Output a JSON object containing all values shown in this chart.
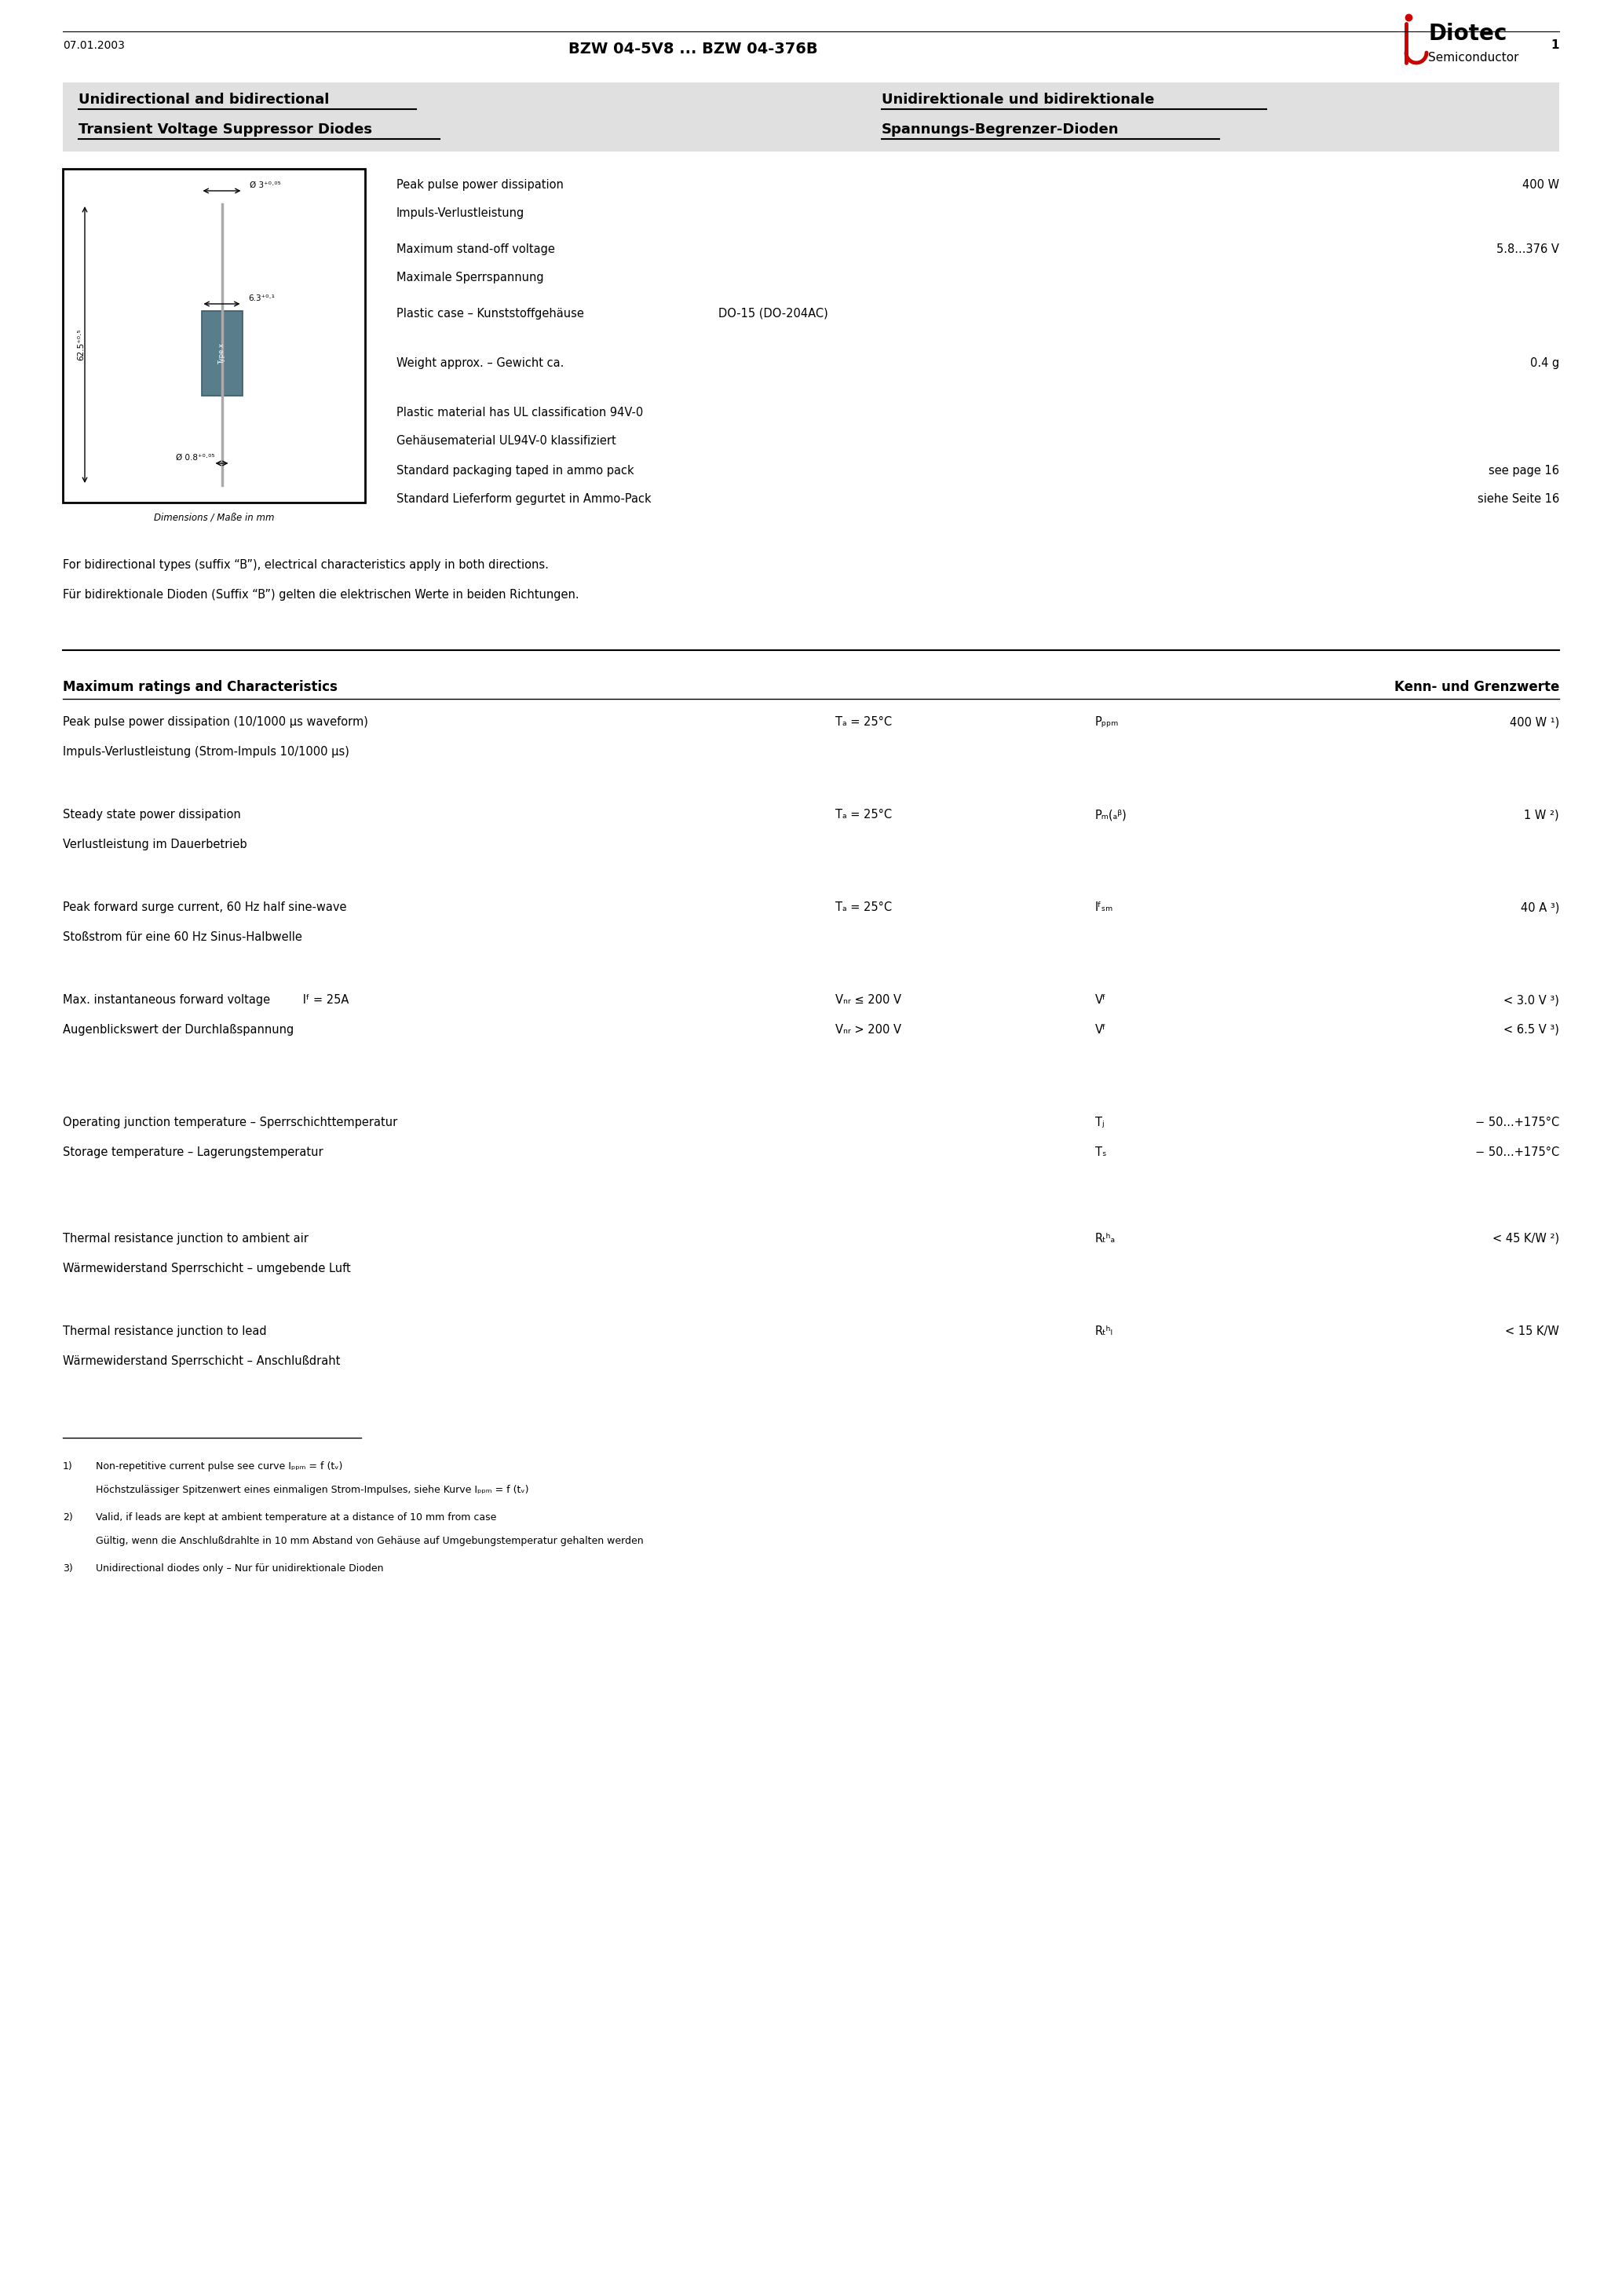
{
  "page_width": 20.66,
  "page_height": 29.24,
  "bg_color": "#ffffff",
  "header_title": "BZW 04-5V8 ... BZW 04-376B",
  "company_name": "Diotec",
  "company_sub": "Semiconductor",
  "logo_color_red": "#cc0000",
  "subtitle_bg": "#e0e0e0",
  "subtitle_left1": "Unidirectional and bidirectional",
  "subtitle_left2": "Transient Voltage Suppressor Diodes",
  "subtitle_right1": "Unidirektionale und bidirektionale",
  "subtitle_right2": "Spannungs-Begrenzer-Dioden",
  "bidirectional_note1": "For bidirectional types (suffix “B”), electrical characteristics apply in both directions.",
  "bidirectional_note2": "Für bidirektionale Dioden (Suffix “B”) gelten die elektrischen Werte in beiden Richtungen.",
  "section_title_left": "Maximum ratings and Characteristics",
  "section_title_right": "Kenn- und Grenzwerte",
  "date": "07.01.2003",
  "page_num": "1"
}
